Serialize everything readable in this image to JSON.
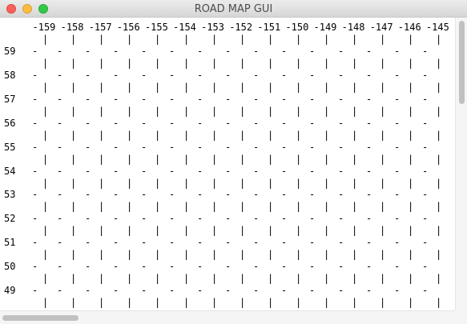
{
  "window": {
    "title": "ROAD MAP GUI",
    "controls": [
      "close",
      "minimize",
      "zoom"
    ]
  },
  "map": {
    "column_labels": [
      "-159",
      "-158",
      "-157",
      "-156",
      "-155",
      "-154",
      "-153",
      "-152",
      "-151",
      "-150",
      "-149",
      "-148",
      "-147",
      "-146",
      "-145"
    ],
    "row_labels": [
      "59",
      "58",
      "57",
      "56",
      "55",
      "54",
      "53",
      "52",
      "51",
      "50",
      "49"
    ],
    "horizontal_road_glyph": "-",
    "vertical_road_glyph": "|"
  },
  "colors": {
    "background": "#ffffff",
    "text": "#000000"
  }
}
